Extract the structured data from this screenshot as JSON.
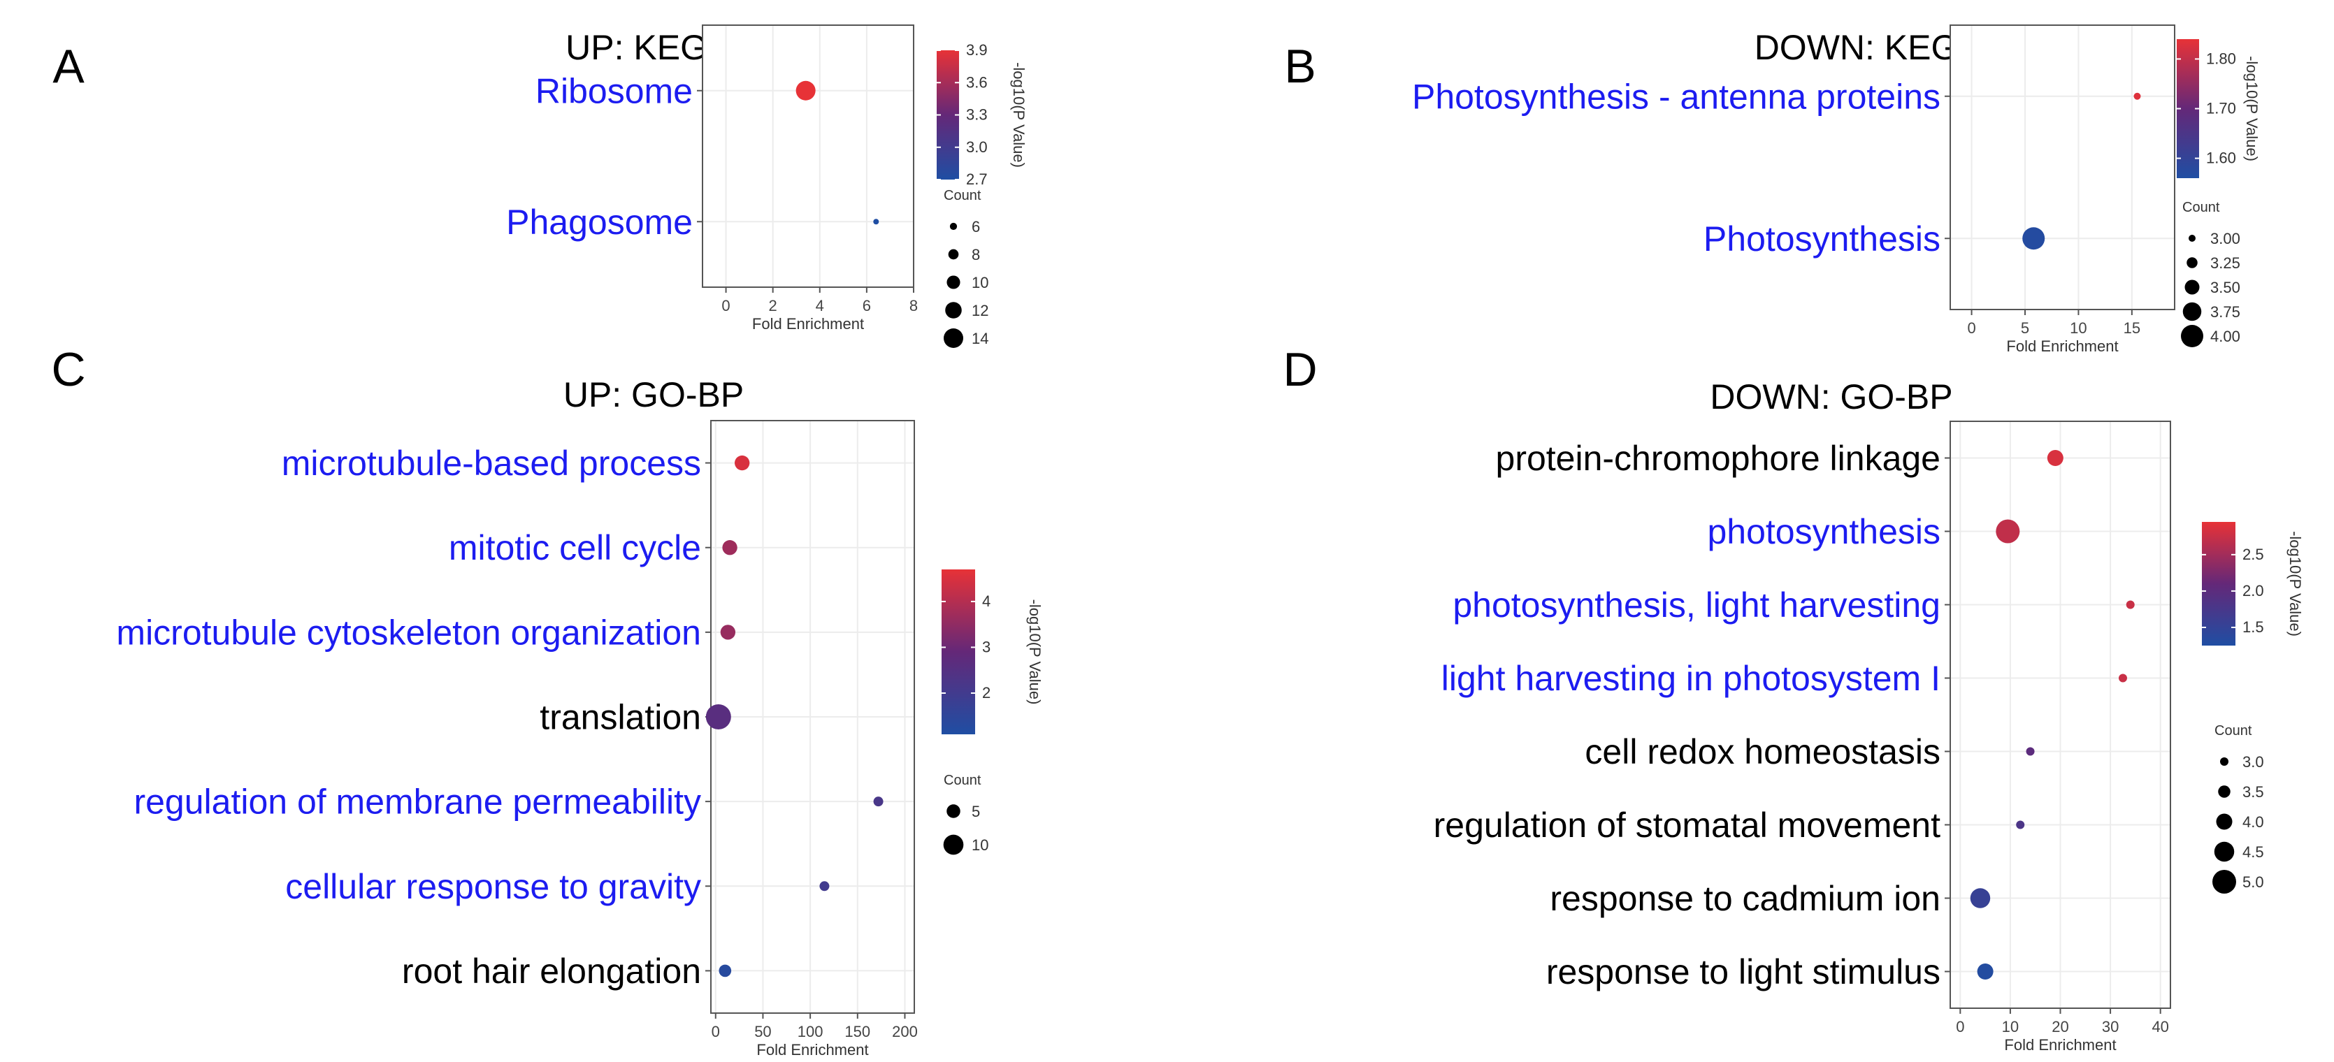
{
  "chart_data": [
    {
      "panel": "A",
      "title": "UP: KEGG",
      "type": "scatter",
      "xlabel": "Fold Enrichment",
      "xlim": [
        -1,
        8
      ],
      "xticks": [
        0,
        2,
        4,
        6,
        8
      ],
      "categories": [
        "Ribosome",
        "Phagosome"
      ],
      "category_colors": [
        "#1c1cf0",
        "#1c1cf0"
      ],
      "x": [
        3.4,
        6.4
      ],
      "pvalue_log": [
        3.9,
        2.7
      ],
      "count": [
        14,
        5
      ],
      "colorbar": {
        "label": "-log10(P Value)",
        "min": 2.7,
        "max": 3.9,
        "ticks": [
          2.7,
          3.0,
          3.3,
          3.6,
          3.9
        ],
        "tick_labels": [
          "2.7",
          "3.0",
          "3.3",
          "3.6",
          "3.9"
        ]
      },
      "size_legend": {
        "title": "Count",
        "min": 5,
        "max": 14,
        "values": [
          6,
          8,
          10,
          12,
          14
        ],
        "labels": [
          "6",
          "8",
          "10",
          "12",
          "14"
        ]
      },
      "grid": true
    },
    {
      "panel": "B",
      "title": "DOWN: KEGG",
      "type": "scatter",
      "xlabel": "Fold Enrichment",
      "xlim": [
        -2,
        19
      ],
      "xticks": [
        0,
        5,
        10,
        15
      ],
      "categories": [
        "Photosynthesis - antenna proteins",
        "Photosynthesis"
      ],
      "category_colors": [
        "#1c1cf0",
        "#1c1cf0"
      ],
      "x": [
        15.5,
        5.8
      ],
      "pvalue_log": [
        1.83,
        1.57
      ],
      "count": [
        3,
        4
      ],
      "colorbar": {
        "label": "-log10(P Value)",
        "min": 1.56,
        "max": 1.84,
        "ticks": [
          1.6,
          1.7,
          1.8
        ],
        "tick_labels": [
          "1.60",
          "1.70",
          "1.80"
        ]
      },
      "size_legend": {
        "title": "Count",
        "min": 3,
        "max": 4,
        "values": [
          3.0,
          3.25,
          3.5,
          3.75,
          4.0
        ],
        "labels": [
          "3.00",
          "3.25",
          "3.50",
          "3.75",
          "4.00"
        ]
      },
      "grid": true
    },
    {
      "panel": "C",
      "title": "UP: GO-BP",
      "type": "scatter",
      "xlabel": "Fold Enrichment",
      "xlim": [
        -5,
        210
      ],
      "xticks": [
        0,
        50,
        100,
        150,
        200
      ],
      "categories": [
        "microtubule-based process",
        "mitotic cell cycle",
        "microtubule cytoskeleton organization",
        "translation",
        "regulation of membrane permeability",
        "cellular response to gravity",
        "root hair elongation"
      ],
      "category_colors": [
        "#1c1cf0",
        "#1c1cf0",
        "#1c1cf0",
        "#000000",
        "#1c1cf0",
        "#1c1cf0",
        "#000000"
      ],
      "x": [
        28,
        15,
        13,
        3,
        172,
        115,
        10
      ],
      "pvalue_log": [
        4.5,
        3.7,
        3.6,
        2.6,
        2.2,
        2.0,
        1.3
      ],
      "count": [
        6,
        6,
        6,
        14,
        2,
        2,
        4
      ],
      "colorbar": {
        "label": "-log10(P Value)",
        "min": 1.1,
        "max": 4.7,
        "ticks": [
          2,
          3,
          4
        ],
        "tick_labels": [
          "2",
          "3",
          "4"
        ]
      },
      "size_legend": {
        "title": "Count",
        "min": 2,
        "max": 14,
        "values": [
          5,
          10
        ],
        "labels": [
          "5",
          "10"
        ]
      },
      "grid": true
    },
    {
      "panel": "D",
      "title": "DOWN: GO-BP",
      "type": "scatter",
      "xlabel": "Fold Enrichment",
      "xlim": [
        -2,
        42
      ],
      "xticks": [
        0,
        10,
        20,
        30,
        40
      ],
      "categories": [
        "protein-chromophore linkage",
        "photosynthesis",
        "photosynthesis, light harvesting",
        "light harvesting in photosystem I",
        "cell redox homeostasis",
        "regulation of stomatal movement",
        "response to cadmium ion",
        "response to light stimulus"
      ],
      "category_colors": [
        "#000000",
        "#1c1cf0",
        "#1c1cf0",
        "#1c1cf0",
        "#000000",
        "#000000",
        "#000000",
        "#000000"
      ],
      "x": [
        19,
        9.5,
        34,
        32.5,
        14,
        12,
        4,
        5
      ],
      "pvalue_log": [
        2.85,
        2.7,
        2.75,
        2.75,
        2.0,
        1.8,
        1.55,
        1.3
      ],
      "count": [
        4,
        5,
        3,
        3,
        3,
        3,
        4.5,
        4
      ],
      "colorbar": {
        "label": "-log10(P Value)",
        "min": 1.25,
        "max": 2.95,
        "ticks": [
          1.5,
          2.0,
          2.5
        ],
        "tick_labels": [
          "1.5",
          "2.0",
          "2.5"
        ]
      },
      "size_legend": {
        "title": "Count",
        "min": 3,
        "max": 5,
        "values": [
          3.0,
          3.5,
          4.0,
          4.5,
          5.0
        ],
        "labels": [
          "3.0",
          "3.5",
          "4.0",
          "4.5",
          "5.0"
        ]
      },
      "grid": true
    }
  ]
}
